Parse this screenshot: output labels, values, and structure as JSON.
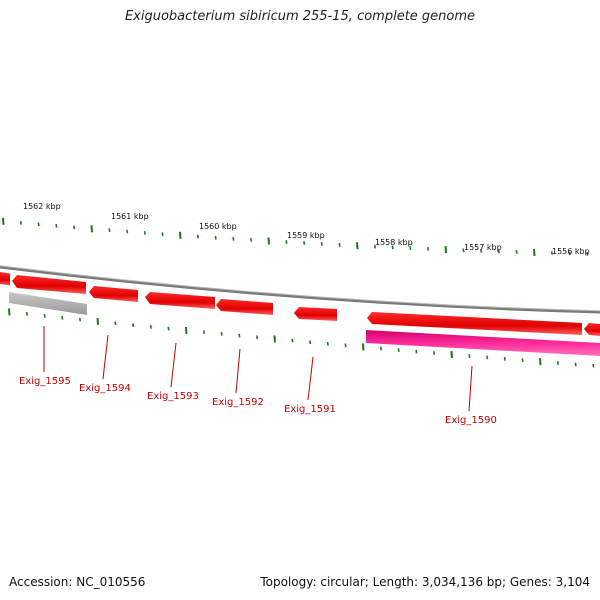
{
  "title": "Exiguobacterium sibiricum 255-15, complete genome",
  "footer": {
    "accession": "Accession: NC_010556",
    "info": "Topology: circular; Length: 3,034,136 bp; Genes: 3,104"
  },
  "scale_labels": [
    {
      "text": "1562 kbp"
    },
    {
      "text": "1561 kbp"
    },
    {
      "text": "1560 kbp"
    },
    {
      "text": "1559 kbp"
    },
    {
      "text": "1558 kbp"
    },
    {
      "text": "1557 kbp"
    },
    {
      "text": "1556 kbp"
    }
  ],
  "genes": [
    {
      "label": "Exig_1595",
      "color": "#b8b8b8",
      "strand": "+"
    },
    {
      "label": "Exig_1594",
      "color": "#ee0000",
      "strand": "-"
    },
    {
      "label": "Exig_1593",
      "color": "#ee0000",
      "strand": "-"
    },
    {
      "label": "Exig_1592",
      "color": "#ee0000",
      "strand": "-"
    },
    {
      "label": "Exig_1591",
      "color": "#ee0000",
      "strand": "-"
    },
    {
      "label": "Exig_1590",
      "color": "#ee0000",
      "strand": "-"
    }
  ],
  "colors": {
    "backbone": "#808080",
    "tick": "#1a7a1a",
    "gene_red": "#ee0000",
    "gene_gray": "#b8b8b8",
    "gene_magenta": "#e0007a",
    "label_red": "#c00000"
  }
}
